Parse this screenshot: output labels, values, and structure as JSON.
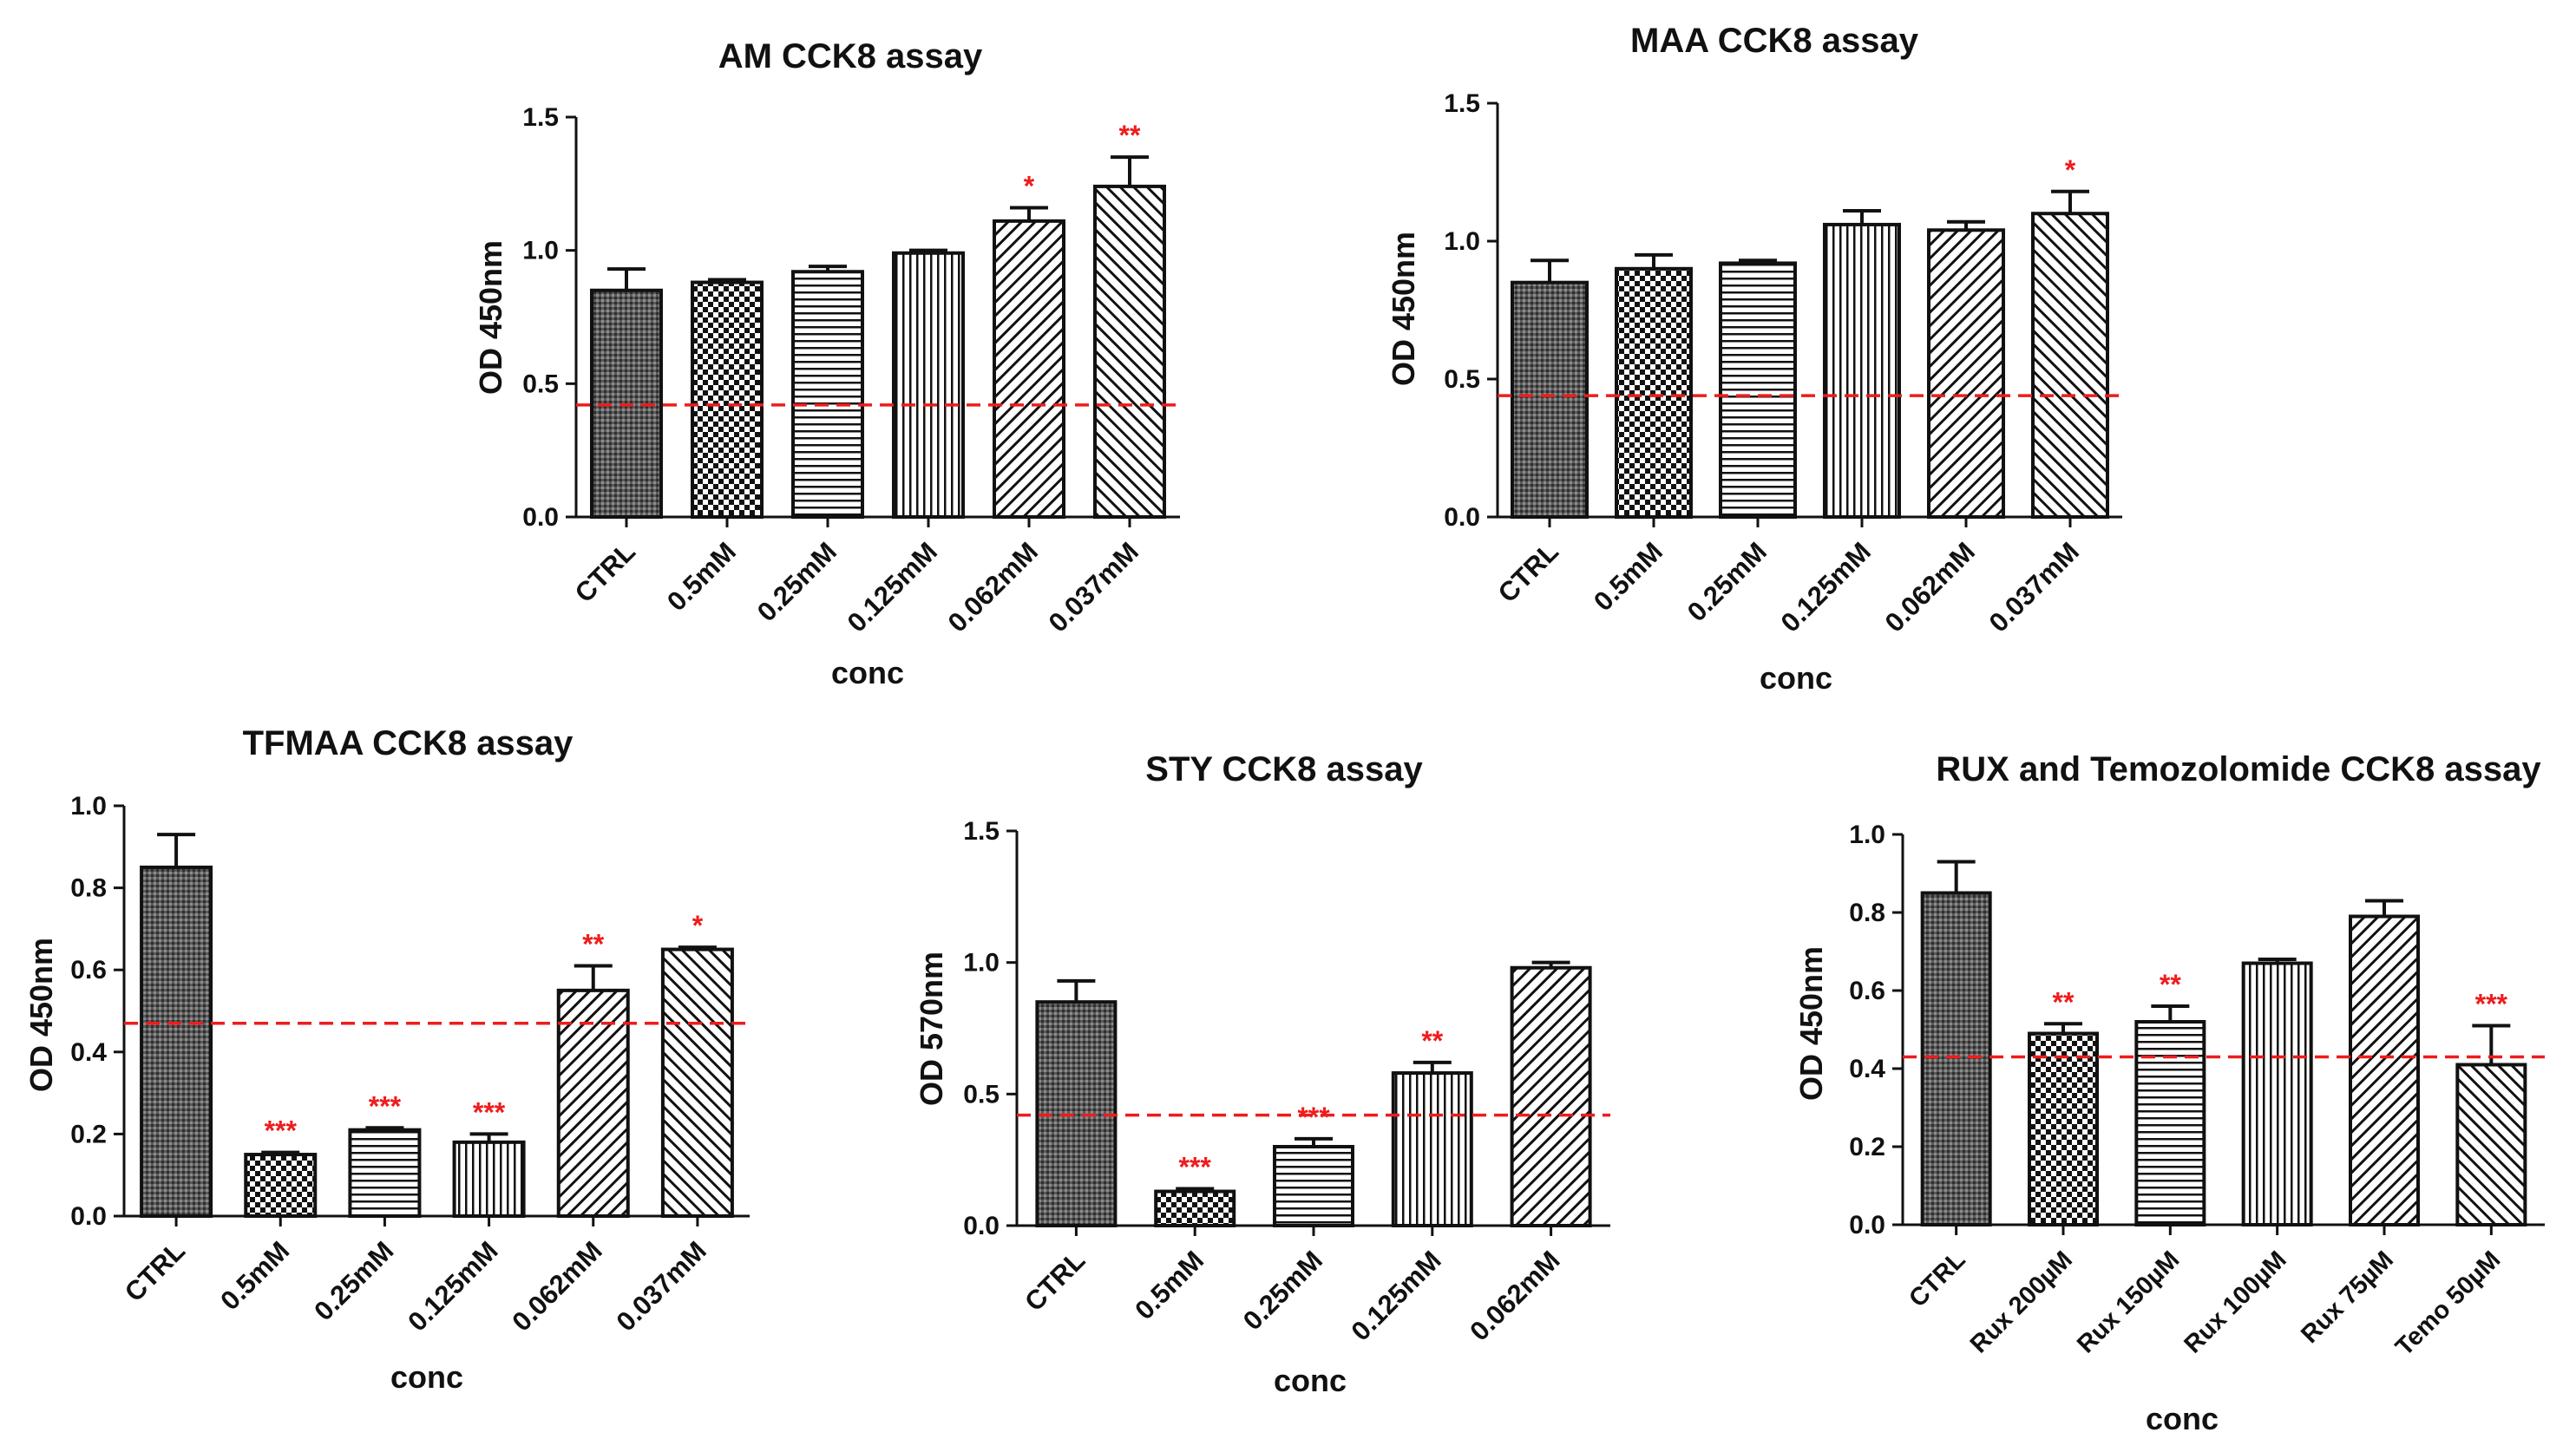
{
  "chart_data": [
    {
      "id": "am",
      "type": "bar",
      "title": "AM CCK8 assay",
      "xlabel": "conc",
      "ylabel": "OD 450nm",
      "ylim": [
        0,
        1.5
      ],
      "yticks": [
        0.0,
        0.5,
        1.0,
        1.5
      ],
      "ytick_labels": [
        "0.0",
        "0.5",
        "1.0",
        "1.5"
      ],
      "categories": [
        "CTRL",
        "0.5mM",
        "0.25mM",
        "0.125mM",
        "0.062mM",
        "0.037mM"
      ],
      "values": [
        0.85,
        0.88,
        0.92,
        0.99,
        1.11,
        1.24
      ],
      "errors": [
        0.08,
        0.01,
        0.02,
        0.01,
        0.05,
        0.11
      ],
      "patterns": [
        "dense",
        "checker",
        "hlines",
        "vlines",
        "diag",
        "diag2"
      ],
      "significance": [
        "",
        "",
        "",
        "",
        "*",
        "**"
      ],
      "reference_line": 0.42,
      "colors": {
        "bar_stroke": "#111111",
        "reference": "#ee1c1c",
        "significance": "#ee1c1c"
      }
    },
    {
      "id": "maa",
      "type": "bar",
      "title": "MAA CCK8 assay",
      "xlabel": "conc",
      "ylabel": "OD 450nm",
      "ylim": [
        0,
        1.5
      ],
      "yticks": [
        0.0,
        0.5,
        1.0,
        1.5
      ],
      "ytick_labels": [
        "0.0",
        "0.5",
        "1.0",
        "1.5"
      ],
      "categories": [
        "CTRL",
        "0.5mM",
        "0.25mM",
        "0.125mM",
        "0.062mM",
        "0.037mM"
      ],
      "values": [
        0.85,
        0.9,
        0.92,
        1.06,
        1.04,
        1.1
      ],
      "errors": [
        0.08,
        0.05,
        0.01,
        0.05,
        0.03,
        0.08
      ],
      "patterns": [
        "dense",
        "checker",
        "hlines",
        "vlines",
        "diag",
        "diag2"
      ],
      "significance": [
        "",
        "",
        "",
        "",
        "",
        "*"
      ],
      "reference_line": 0.44,
      "colors": {
        "bar_stroke": "#111111",
        "reference": "#ee1c1c",
        "significance": "#ee1c1c"
      }
    },
    {
      "id": "tfmaa",
      "type": "bar",
      "title": "TFMAA CCK8 assay",
      "xlabel": "conc",
      "ylabel": "OD 450nm",
      "ylim": [
        0,
        1.0
      ],
      "yticks": [
        0.0,
        0.2,
        0.4,
        0.6,
        0.8,
        1.0
      ],
      "ytick_labels": [
        "0.0",
        "0.2",
        "0.4",
        "0.6",
        "0.8",
        "1.0"
      ],
      "categories": [
        "CTRL",
        "0.5mM",
        "0.25mM",
        "0.125mM",
        "0.062mM",
        "0.037mM"
      ],
      "values": [
        0.85,
        0.15,
        0.21,
        0.18,
        0.55,
        0.65
      ],
      "errors": [
        0.08,
        0.005,
        0.005,
        0.02,
        0.06,
        0.005
      ],
      "patterns": [
        "dense",
        "checker",
        "hlines",
        "vlines",
        "diag",
        "diag2"
      ],
      "significance": [
        "",
        "***",
        "***",
        "***",
        "**",
        "*"
      ],
      "reference_line": 0.47,
      "colors": {
        "bar_stroke": "#111111",
        "reference": "#ee1c1c",
        "significance": "#ee1c1c"
      }
    },
    {
      "id": "sty",
      "type": "bar",
      "title": "STY CCK8 assay",
      "xlabel": "conc",
      "ylabel": "OD 570nm",
      "ylim": [
        0,
        1.5
      ],
      "yticks": [
        0.0,
        0.5,
        1.0,
        1.5
      ],
      "ytick_labels": [
        "0.0",
        "0.5",
        "1.0",
        "1.5"
      ],
      "categories": [
        "CTRL",
        "0.5mM",
        "0.25mM",
        "0.125mM",
        "0.062mM"
      ],
      "values": [
        0.85,
        0.13,
        0.3,
        0.58,
        0.98
      ],
      "errors": [
        0.08,
        0.01,
        0.03,
        0.04,
        0.02
      ],
      "patterns": [
        "dense",
        "checker",
        "hlines",
        "vlines",
        "diag"
      ],
      "significance": [
        "",
        "***",
        "***",
        "**",
        ""
      ],
      "reference_line": 0.42,
      "colors": {
        "bar_stroke": "#111111",
        "reference": "#ee1c1c",
        "significance": "#ee1c1c"
      }
    },
    {
      "id": "rux",
      "type": "bar",
      "title": "RUX and Temozolomide CCK8 assay",
      "xlabel": "conc",
      "ylabel": "OD 450nm",
      "ylim": [
        0,
        1.0
      ],
      "yticks": [
        0.0,
        0.2,
        0.4,
        0.6,
        0.8,
        1.0
      ],
      "ytick_labels": [
        "0.0",
        "0.2",
        "0.4",
        "0.6",
        "0.8",
        "1.0"
      ],
      "categories": [
        "CTRL",
        "Rux 200µM",
        "Rux 150µM",
        "Rux 100µM",
        "Rux 75µM",
        "Temo 50µM"
      ],
      "values": [
        0.85,
        0.49,
        0.52,
        0.67,
        0.79,
        0.41
      ],
      "errors": [
        0.08,
        0.025,
        0.04,
        0.01,
        0.04,
        0.1
      ],
      "patterns": [
        "dense",
        "checker",
        "hlines",
        "vlines",
        "diag",
        "diag2"
      ],
      "significance": [
        "",
        "**",
        "**",
        "",
        "",
        "***"
      ],
      "reference_line": 0.43,
      "colors": {
        "bar_stroke": "#111111",
        "reference": "#ee1c1c",
        "significance": "#ee1c1c"
      }
    }
  ]
}
